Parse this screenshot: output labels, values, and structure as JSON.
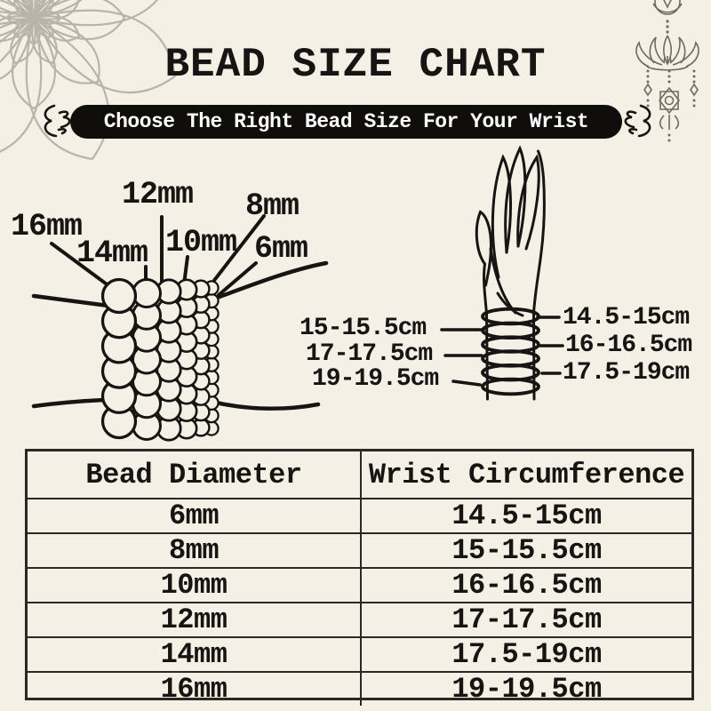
{
  "colors": {
    "background": "#f5f0e5",
    "ink": "#171513",
    "banner_bg": "#0f0e0c",
    "banner_text": "#ffffff",
    "mandala_gray": "#b9b4aa",
    "ornament_gray": "#6f6b62"
  },
  "header": {
    "title": "BEAD SIZE CHART",
    "banner": "Choose The Right Bead Size For Your Wrist"
  },
  "bead_diagram": {
    "labels": [
      "16mm",
      "14mm",
      "12mm",
      "10mm",
      "8mm",
      "6mm"
    ]
  },
  "hand_diagram": {
    "left_labels": [
      "15-15.5cm",
      "17-17.5cm",
      "19-19.5cm"
    ],
    "right_labels": [
      "14.5-15cm",
      "16-16.5cm",
      "17.5-19cm"
    ]
  },
  "table": {
    "headers": [
      "Bead Diameter",
      "Wrist Circumference"
    ],
    "rows": [
      [
        "6mm",
        "14.5-15cm"
      ],
      [
        "8mm",
        "15-15.5cm"
      ],
      [
        "10mm",
        "16-16.5cm"
      ],
      [
        "12mm",
        "17-17.5cm"
      ],
      [
        "14mm",
        "17.5-19cm"
      ],
      [
        "16mm",
        "19-19.5cm"
      ]
    ]
  }
}
